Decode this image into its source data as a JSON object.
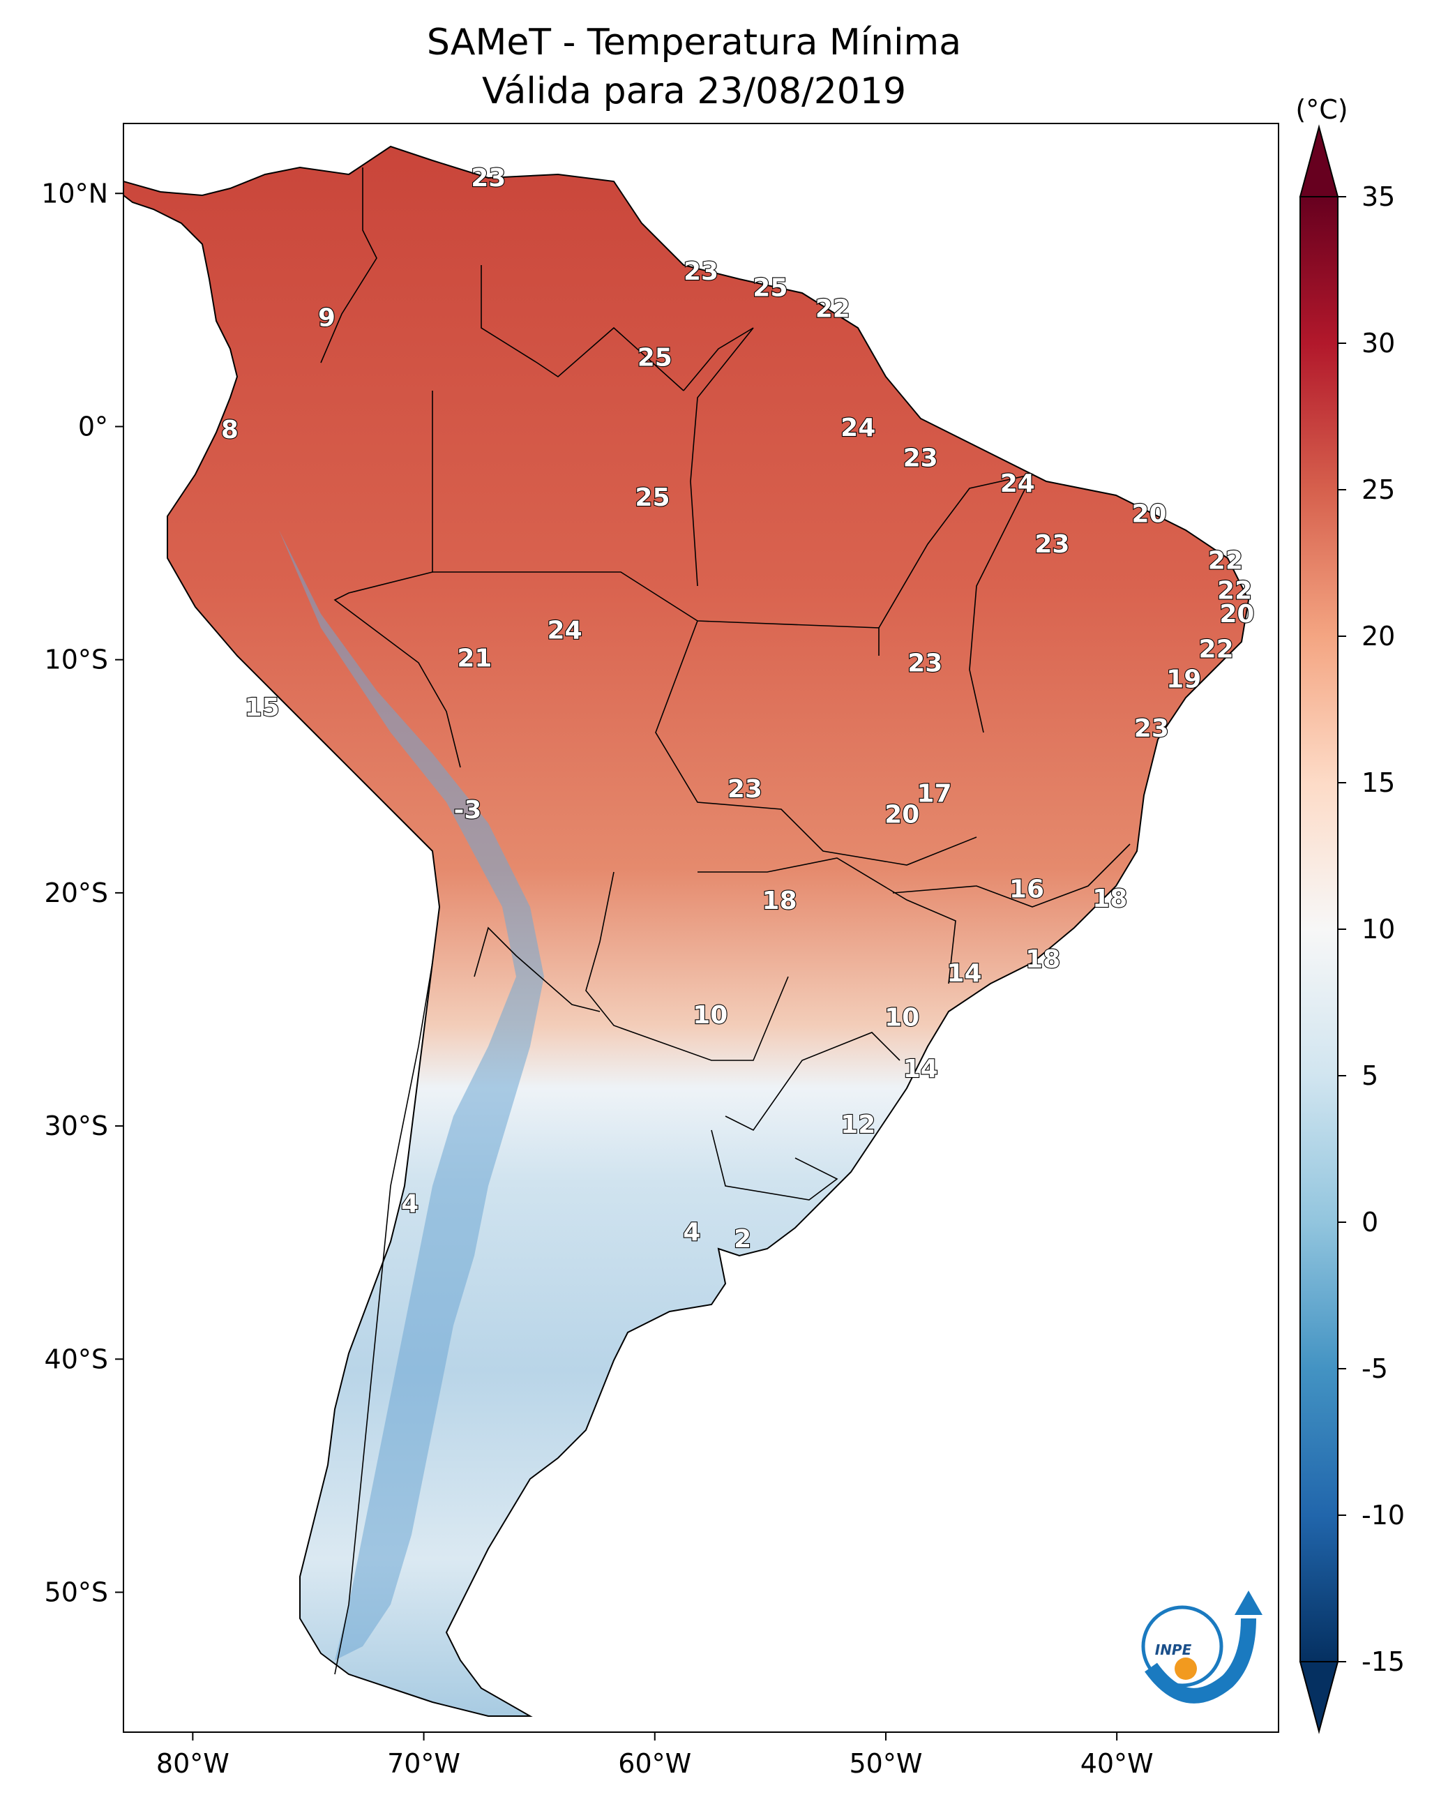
{
  "title": {
    "line1": "SAMeT - Temperatura Mínima",
    "line2": "Válida para 23/08/2019"
  },
  "axes": {
    "lat_ticks": [
      {
        "label": "10°N",
        "value": 10
      },
      {
        "label": "0°",
        "value": 0
      },
      {
        "label": "10°S",
        "value": -10
      },
      {
        "label": "20°S",
        "value": -20
      },
      {
        "label": "30°S",
        "value": -30
      },
      {
        "label": "40°S",
        "value": -40
      },
      {
        "label": "50°S",
        "value": -50
      }
    ],
    "lon_ticks": [
      {
        "label": "80°W",
        "value": -80
      },
      {
        "label": "70°W",
        "value": -70
      },
      {
        "label": "60°W",
        "value": -60
      },
      {
        "label": "50°W",
        "value": -50
      },
      {
        "label": "40°W",
        "value": -40
      }
    ],
    "lon_range": [
      -83,
      -33
    ],
    "lat_range": [
      -56,
      13
    ]
  },
  "colorbar": {
    "unit": "(°C)",
    "range": [
      -15,
      35
    ],
    "extend": "both",
    "colormap": "RdBu_r",
    "ticks": [
      {
        "label": "35",
        "value": 35
      },
      {
        "label": "30",
        "value": 30
      },
      {
        "label": "25",
        "value": 25
      },
      {
        "label": "20",
        "value": 20
      },
      {
        "label": "15",
        "value": 15
      },
      {
        "label": "10",
        "value": 10
      },
      {
        "label": "5",
        "value": 5
      },
      {
        "label": "0",
        "value": 0
      },
      {
        "label": "-5",
        "value": -5
      },
      {
        "label": "-10",
        "value": -10
      },
      {
        "label": "-15",
        "value": -15
      }
    ],
    "colors": [
      "#053061",
      "#2166ac",
      "#4393c3",
      "#92c5de",
      "#d1e5f0",
      "#f7f7f7",
      "#fddbc7",
      "#f4a582",
      "#d6604d",
      "#b2182b",
      "#67001f"
    ]
  },
  "stations": [
    {
      "label": "23",
      "lon": -67.2,
      "lat": 10.6
    },
    {
      "label": "9",
      "lon": -74.2,
      "lat": 4.6
    },
    {
      "label": "8",
      "lon": -78.4,
      "lat": -0.2
    },
    {
      "label": "23",
      "lon": -58.0,
      "lat": 6.6
    },
    {
      "label": "25",
      "lon": -55.0,
      "lat": 5.9
    },
    {
      "label": "22",
      "lon": -52.3,
      "lat": 5.0
    },
    {
      "label": "25",
      "lon": -60.0,
      "lat": 2.9
    },
    {
      "label": "24",
      "lon": -51.2,
      "lat": -0.1
    },
    {
      "label": "23",
      "lon": -48.5,
      "lat": -1.4
    },
    {
      "label": "25",
      "lon": -60.1,
      "lat": -3.1
    },
    {
      "label": "24",
      "lon": -44.3,
      "lat": -2.5
    },
    {
      "label": "20",
      "lon": -38.6,
      "lat": -3.8
    },
    {
      "label": "23",
      "lon": -42.8,
      "lat": -5.1
    },
    {
      "label": "22",
      "lon": -35.3,
      "lat": -5.8
    },
    {
      "label": "22",
      "lon": -34.9,
      "lat": -7.1
    },
    {
      "label": "20",
      "lon": -34.8,
      "lat": -8.1
    },
    {
      "label": "22",
      "lon": -35.7,
      "lat": -9.6
    },
    {
      "label": "24",
      "lon": -63.9,
      "lat": -8.8
    },
    {
      "label": "21",
      "lon": -67.8,
      "lat": -10.0
    },
    {
      "label": "23",
      "lon": -48.3,
      "lat": -10.2
    },
    {
      "label": "19",
      "lon": -37.1,
      "lat": -10.9
    },
    {
      "label": "15",
      "lon": -77.0,
      "lat": -12.1
    },
    {
      "label": "23",
      "lon": -38.5,
      "lat": -13.0
    },
    {
      "label": "23",
      "lon": -56.1,
      "lat": -15.6
    },
    {
      "label": "17",
      "lon": -47.9,
      "lat": -15.8
    },
    {
      "label": "20",
      "lon": -49.3,
      "lat": -16.7
    },
    {
      "label": "-3",
      "lon": -68.1,
      "lat": -16.5
    },
    {
      "label": "16",
      "lon": -43.9,
      "lat": -19.9
    },
    {
      "label": "18",
      "lon": -40.3,
      "lat": -20.3
    },
    {
      "label": "18",
      "lon": -54.6,
      "lat": -20.4
    },
    {
      "label": "18",
      "lon": -43.2,
      "lat": -22.9
    },
    {
      "label": "14",
      "lon": -46.6,
      "lat": -23.5
    },
    {
      "label": "10",
      "lon": -57.6,
      "lat": -25.3
    },
    {
      "label": "10",
      "lon": -49.3,
      "lat": -25.4
    },
    {
      "label": "14",
      "lon": -48.5,
      "lat": -27.6
    },
    {
      "label": "12",
      "lon": -51.2,
      "lat": -30.0
    },
    {
      "label": "4",
      "lon": -70.6,
      "lat": -33.4
    },
    {
      "label": "4",
      "lon": -58.4,
      "lat": -34.6
    },
    {
      "label": "2",
      "lon": -56.2,
      "lat": -34.9
    }
  ],
  "logo": {
    "text": "INPE"
  }
}
